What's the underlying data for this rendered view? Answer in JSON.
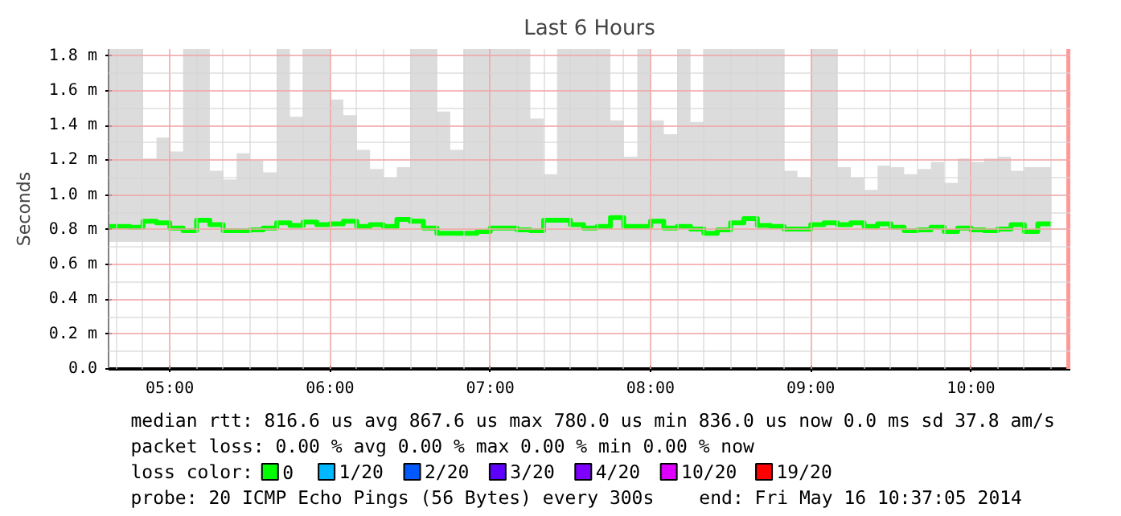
{
  "chart_data": {
    "type": "step",
    "title": "Last 6 Hours",
    "ylabel": "Seconds",
    "legend_title": "loss color:",
    "xlim": [
      4.618,
      10.62
    ],
    "ylim": [
      0,
      1.84
    ],
    "xticks": [
      {
        "value": 5,
        "label": "05:00"
      },
      {
        "value": 6,
        "label": "06:00"
      },
      {
        "value": 7,
        "label": "07:00"
      },
      {
        "value": 8,
        "label": "08:00"
      },
      {
        "value": 9,
        "label": "09:00"
      },
      {
        "value": 10,
        "label": "10:00"
      },
      {
        "value": 4.667,
        "label": null
      },
      {
        "value": 4.833,
        "label": null
      },
      {
        "value": 5.167,
        "label": null
      },
      {
        "value": 5.333,
        "label": null
      },
      {
        "value": 5.5,
        "label": null
      },
      {
        "value": 5.667,
        "label": null
      },
      {
        "value": 5.833,
        "label": null
      },
      {
        "value": 6.167,
        "label": null
      },
      {
        "value": 6.333,
        "label": null
      },
      {
        "value": 6.5,
        "label": null
      },
      {
        "value": 6.667,
        "label": null
      },
      {
        "value": 6.833,
        "label": null
      },
      {
        "value": 7.167,
        "label": null
      },
      {
        "value": 7.333,
        "label": null
      },
      {
        "value": 7.5,
        "label": null
      },
      {
        "value": 7.667,
        "label": null
      },
      {
        "value": 7.833,
        "label": null
      },
      {
        "value": 8.167,
        "label": null
      },
      {
        "value": 8.333,
        "label": null
      },
      {
        "value": 8.5,
        "label": null
      },
      {
        "value": 8.667,
        "label": null
      },
      {
        "value": 8.833,
        "label": null
      },
      {
        "value": 9.167,
        "label": null
      },
      {
        "value": 9.333,
        "label": null
      },
      {
        "value": 9.5,
        "label": null
      },
      {
        "value": 9.667,
        "label": null
      },
      {
        "value": 9.833,
        "label": null
      },
      {
        "value": 10.167,
        "label": null
      },
      {
        "value": 10.333,
        "label": null
      },
      {
        "value": 10.5,
        "label": null
      }
    ],
    "yticks": [
      {
        "value": 0,
        "label": "0.0"
      },
      {
        "value": 0.2,
        "label": "0.2 m"
      },
      {
        "value": 0.4,
        "label": "0.4 m"
      },
      {
        "value": 0.6,
        "label": "0.6 m"
      },
      {
        "value": 0.8,
        "label": "0.8 m"
      },
      {
        "value": 1.0,
        "label": "1.0 m"
      },
      {
        "value": 1.2,
        "label": "1.2 m"
      },
      {
        "value": 1.4,
        "label": "1.4 m"
      },
      {
        "value": 1.6,
        "label": "1.6 m"
      },
      {
        "value": 1.8,
        "label": "1.8 m"
      },
      {
        "value": 0.1,
        "label": null
      },
      {
        "value": 0.3,
        "label": null
      },
      {
        "value": 0.5,
        "label": null
      },
      {
        "value": 0.7,
        "label": null
      },
      {
        "value": 0.9,
        "label": null
      },
      {
        "value": 1.1,
        "label": null
      },
      {
        "value": 1.3,
        "label": null
      },
      {
        "value": 1.5,
        "label": null
      },
      {
        "value": 1.7,
        "label": null
      }
    ],
    "grid": true,
    "legend": "bottom",
    "x": [
      4.618,
      4.667,
      4.75,
      4.833,
      4.917,
      5,
      5.083,
      5.167,
      5.25,
      5.333,
      5.417,
      5.5,
      5.583,
      5.667,
      5.75,
      5.833,
      5.917,
      6,
      6.083,
      6.167,
      6.25,
      6.333,
      6.417,
      6.5,
      6.583,
      6.667,
      6.75,
      6.833,
      6.917,
      7,
      7.083,
      7.167,
      7.25,
      7.333,
      7.417,
      7.5,
      7.583,
      7.667,
      7.75,
      7.833,
      7.917,
      8,
      8.083,
      8.167,
      8.25,
      8.333,
      8.417,
      8.5,
      8.583,
      8.667,
      8.75,
      8.833,
      8.917,
      9,
      9.083,
      9.167,
      9.25,
      9.333,
      9.417,
      9.5,
      9.583,
      9.667,
      9.75,
      9.833,
      9.917,
      10,
      10.083,
      10.167,
      10.25,
      10.333,
      10.417,
      10.5
    ],
    "series": [
      {
        "name": "0",
        "color": "#00ff00",
        "values": [
          0.82,
          0.82,
          0.815,
          0.85,
          0.84,
          0.81,
          0.795,
          0.855,
          0.83,
          0.795,
          0.795,
          0.8,
          0.81,
          0.84,
          0.825,
          0.845,
          0.83,
          0.835,
          0.85,
          0.82,
          0.83,
          0.82,
          0.86,
          0.85,
          0.81,
          0.78,
          0.78,
          0.78,
          0.79,
          0.81,
          0.81,
          0.8,
          0.795,
          0.855,
          0.855,
          0.83,
          0.81,
          0.82,
          0.87,
          0.82,
          0.82,
          0.85,
          0.81,
          0.82,
          0.805,
          0.78,
          0.8,
          0.84,
          0.865,
          0.825,
          0.82,
          0.805,
          0.805,
          0.83,
          0.84,
          0.83,
          0.84,
          0.82,
          0.835,
          0.815,
          0.795,
          0.8,
          0.815,
          0.79,
          0.81,
          0.8,
          0.795,
          0.805,
          0.83,
          0.79,
          0.835,
          0.835
        ],
        "lower": [
          0.73,
          0.73,
          0.73,
          0.73,
          0.73,
          0.73,
          0.73,
          0.73,
          0.73,
          0.73,
          0.73,
          0.73,
          0.73,
          0.73,
          0.73,
          0.73,
          0.73,
          0.73,
          0.73,
          0.73,
          0.73,
          0.73,
          0.73,
          0.73,
          0.73,
          0.73,
          0.73,
          0.73,
          0.73,
          0.73,
          0.73,
          0.73,
          0.73,
          0.73,
          0.73,
          0.73,
          0.73,
          0.73,
          0.73,
          0.73,
          0.73,
          0.73,
          0.73,
          0.73,
          0.73,
          0.73,
          0.73,
          0.73,
          0.73,
          0.73,
          0.73,
          0.73,
          0.73,
          0.73,
          0.73,
          0.73,
          0.73,
          0.73,
          0.73,
          0.73,
          0.73,
          0.73,
          0.73,
          0.73,
          0.73,
          0.73,
          0.73,
          0.73,
          0.73,
          0.73,
          0.73,
          0.73
        ],
        "upper": [
          1.84,
          1.84,
          1.84,
          1.21,
          1.33,
          1.25,
          1.84,
          1.84,
          1.14,
          1.09,
          1.24,
          1.2,
          1.13,
          1.84,
          1.45,
          1.84,
          1.84,
          1.55,
          1.46,
          1.26,
          1.15,
          1.1,
          1.16,
          1.84,
          1.84,
          1.48,
          1.26,
          1.84,
          1.84,
          1.84,
          1.84,
          1.84,
          1.44,
          1.12,
          1.84,
          1.84,
          1.84,
          1.84,
          1.43,
          1.22,
          1.84,
          1.43,
          1.35,
          1.84,
          1.42,
          1.84,
          1.84,
          1.84,
          1.84,
          1.84,
          1.84,
          1.14,
          1.1,
          1.84,
          1.84,
          1.16,
          1.1,
          1.03,
          1.17,
          1.16,
          1.12,
          1.15,
          1.19,
          1.07,
          1.21,
          1.19,
          1.21,
          1.22,
          1.14,
          1.16,
          1.16,
          1.84
        ]
      },
      {
        "name": "1/20",
        "color": "#00b8ff",
        "values": [
          null,
          null,
          null,
          null,
          null,
          null,
          null,
          null,
          null,
          null,
          null,
          null,
          null,
          null,
          null,
          null,
          null,
          null,
          null,
          null,
          null,
          null,
          null,
          null,
          null,
          null,
          null,
          null,
          null,
          null,
          null,
          null,
          null,
          null,
          null,
          null,
          null,
          null,
          null,
          null,
          null,
          null,
          null,
          null,
          null,
          null,
          null,
          null,
          null,
          null,
          null,
          null,
          null,
          null,
          null,
          null,
          null,
          null,
          null,
          null,
          null,
          null,
          null,
          null,
          null,
          null,
          null,
          null,
          null,
          null,
          null,
          null
        ]
      },
      {
        "name": "2/20",
        "color": "#0059ff",
        "values": [
          null,
          null,
          null,
          null,
          null,
          null,
          null,
          null,
          null,
          null,
          null,
          null,
          null,
          null,
          null,
          null,
          null,
          null,
          null,
          null,
          null,
          null,
          null,
          null,
          null,
          null,
          null,
          null,
          null,
          null,
          null,
          null,
          null,
          null,
          null,
          null,
          null,
          null,
          null,
          null,
          null,
          null,
          null,
          null,
          null,
          null,
          null,
          null,
          null,
          null,
          null,
          null,
          null,
          null,
          null,
          null,
          null,
          null,
          null,
          null,
          null,
          null,
          null,
          null,
          null,
          null,
          null,
          null,
          null,
          null,
          null,
          null
        ]
      },
      {
        "name": "3/20",
        "color": "#5e00ff",
        "values": [
          null,
          null,
          null,
          null,
          null,
          null,
          null,
          null,
          null,
          null,
          null,
          null,
          null,
          null,
          null,
          null,
          null,
          null,
          null,
          null,
          null,
          null,
          null,
          null,
          null,
          null,
          null,
          null,
          null,
          null,
          null,
          null,
          null,
          null,
          null,
          null,
          null,
          null,
          null,
          null,
          null,
          null,
          null,
          null,
          null,
          null,
          null,
          null,
          null,
          null,
          null,
          null,
          null,
          null,
          null,
          null,
          null,
          null,
          null,
          null,
          null,
          null,
          null,
          null,
          null,
          null,
          null,
          null,
          null,
          null,
          null,
          null
        ]
      },
      {
        "name": "4/20",
        "color": "#7e00ff",
        "values": [
          null,
          null,
          null,
          null,
          null,
          null,
          null,
          null,
          null,
          null,
          null,
          null,
          null,
          null,
          null,
          null,
          null,
          null,
          null,
          null,
          null,
          null,
          null,
          null,
          null,
          null,
          null,
          null,
          null,
          null,
          null,
          null,
          null,
          null,
          null,
          null,
          null,
          null,
          null,
          null,
          null,
          null,
          null,
          null,
          null,
          null,
          null,
          null,
          null,
          null,
          null,
          null,
          null,
          null,
          null,
          null,
          null,
          null,
          null,
          null,
          null,
          null,
          null,
          null,
          null,
          null,
          null,
          null,
          null,
          null,
          null,
          null
        ]
      },
      {
        "name": "10/20",
        "color": "#dd00ff",
        "values": [
          null,
          null,
          null,
          null,
          null,
          null,
          null,
          null,
          null,
          null,
          null,
          null,
          null,
          null,
          null,
          null,
          null,
          null,
          null,
          null,
          null,
          null,
          null,
          null,
          null,
          null,
          null,
          null,
          null,
          null,
          null,
          null,
          null,
          null,
          null,
          null,
          null,
          null,
          null,
          null,
          null,
          null,
          null,
          null,
          null,
          null,
          null,
          null,
          null,
          null,
          null,
          null,
          null,
          null,
          null,
          null,
          null,
          null,
          null,
          null,
          null,
          null,
          null,
          null,
          null,
          null,
          null,
          null,
          null,
          null,
          null,
          null
        ]
      },
      {
        "name": "19/20",
        "color": "#ff0000",
        "values": [
          null,
          null,
          null,
          null,
          null,
          null,
          null,
          null,
          null,
          null,
          null,
          null,
          null,
          null,
          null,
          null,
          null,
          null,
          null,
          null,
          null,
          null,
          null,
          null,
          null,
          null,
          null,
          null,
          null,
          null,
          null,
          null,
          null,
          null,
          null,
          null,
          null,
          null,
          null,
          null,
          null,
          null,
          null,
          null,
          null,
          null,
          null,
          null,
          null,
          null,
          null,
          null,
          null,
          null,
          null,
          null,
          null,
          null,
          null,
          null,
          null,
          null,
          null,
          null,
          null,
          null,
          null,
          null,
          null,
          null,
          null,
          null
        ]
      }
    ],
    "ref_lines": [
      {
        "axis": "x",
        "value": 10.61,
        "label": null,
        "color": "#ff9999"
      }
    ],
    "annotations": [
      "median rtt:  816.6 us avg  867.6 us max  780.0 us min  836.0 us now  0.0 ms sd  37.8   am/s",
      "packet loss: 0.00 % avg  0.00 % max  0.00 % min  0.00 % now",
      "probe:        20 ICMP Echo Pings (56 Bytes) every 300s",
      "end: Fri May 16 10:37:05 2014"
    ]
  }
}
